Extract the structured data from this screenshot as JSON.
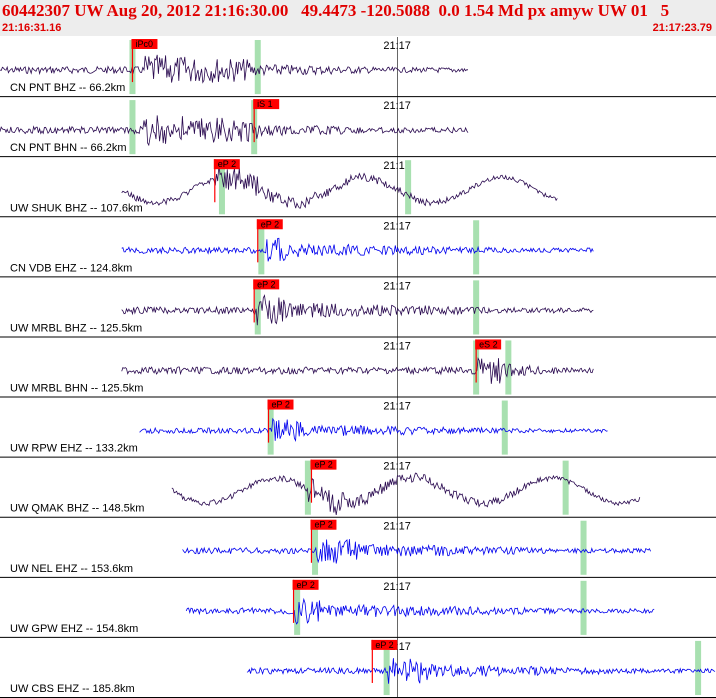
{
  "header": {
    "title": "60442307 UW Aug 20, 2012 21:16:30.00   49.4473 -120.5088  0.0 1.54 Md px amyw UW 01   5",
    "start_time": "21:16:31.16",
    "end_time": "21:17:23.79"
  },
  "colors": {
    "short_period": "#0000ee",
    "broadband": "#2a0a50",
    "pick_flag": "#ff0000",
    "pick_bar": "#a8e0b0",
    "header_text": "#e00000"
  },
  "chart_data": {
    "type": "line",
    "title": "",
    "time_axis": {
      "start": "21:16:31.16",
      "end": "21:17:23.79",
      "minute_tick_label": "21:17"
    },
    "series": [
      {
        "name": "CN PNT BHZ -- 66.2km",
        "color": "broadband",
        "start": 0,
        "end": 0.655,
        "amp": 16,
        "onset": 0.2,
        "pick": {
          "label": "iPc0",
          "pos": 0.185
        },
        "pick_bars": [
          0.185,
          0.36
        ],
        "coda": 0.35,
        "long_period": false
      },
      {
        "name": "CN PNT BHN -- 66.2km",
        "color": "broadband",
        "start": 0,
        "end": 0.655,
        "amp": 16,
        "onset": 0.2,
        "pick": {
          "label": "iS 1",
          "pos": 0.355
        },
        "pick_bars": [
          0.185,
          0.355
        ],
        "coda": 0.36,
        "long_period": false
      },
      {
        "name": "UW SHUK BHZ -- 107.6km",
        "color": "broadband",
        "start": 0.17,
        "end": 0.78,
        "amp": 14,
        "onset": 0.3,
        "pick": {
          "label": "eP 2",
          "pos": 0.3
        },
        "pick_bars": [
          0.31,
          0.57
        ],
        "coda": 0.36,
        "long_period": true
      },
      {
        "name": "CN VDB EHZ -- 124.8km",
        "color": "short_period",
        "start": 0.17,
        "end": 0.83,
        "amp": 14,
        "onset": 0.37,
        "pick": {
          "label": "eP 2",
          "pos": 0.36
        },
        "pick_bars": [
          0.365,
          0.665
        ],
        "coda": 0.4,
        "long_period": false
      },
      {
        "name": "UW MRBL BHZ -- 125.5km",
        "color": "broadband",
        "start": 0.17,
        "end": 0.83,
        "amp": 16,
        "onset": 0.355,
        "pick": {
          "label": "eP 2",
          "pos": 0.355
        },
        "pick_bars": [
          0.36,
          0.665
        ],
        "coda": 0.4,
        "long_period": false
      },
      {
        "name": "UW MRBL BHN -- 125.5km",
        "color": "broadband",
        "start": 0.17,
        "end": 0.83,
        "amp": 16,
        "onset": 0.665,
        "pick": {
          "label": "eS 2",
          "pos": 0.665
        },
        "pick_bars": [
          0.665,
          0.71
        ],
        "coda": 0.7,
        "long_period": false
      },
      {
        "name": "UW RPW EHZ -- 133.2km",
        "color": "short_period",
        "start": 0.195,
        "end": 0.85,
        "amp": 12,
        "onset": 0.38,
        "pick": {
          "label": "eP 2",
          "pos": 0.375
        },
        "pick_bars": [
          0.378,
          0.705
        ],
        "coda": 0.42,
        "long_period": false
      },
      {
        "name": "UW QMAK BHZ -- 148.5km",
        "color": "broadband",
        "start": 0.24,
        "end": 0.895,
        "amp": 14,
        "onset": 0.43,
        "pick": {
          "label": "eP 2",
          "pos": 0.435
        },
        "pick_bars": [
          0.43,
          0.79
        ],
        "coda": 0.48,
        "long_period": true
      },
      {
        "name": "UW NEL EHZ -- 153.6km",
        "color": "short_period",
        "start": 0.255,
        "end": 0.91,
        "amp": 14,
        "onset": 0.44,
        "pick": {
          "label": "eP 2",
          "pos": 0.435
        },
        "pick_bars": [
          0.44,
          0.815
        ],
        "coda": 0.5,
        "long_period": false
      },
      {
        "name": "UW GPW EHZ -- 154.8km",
        "color": "short_period",
        "start": 0.26,
        "end": 0.915,
        "amp": 14,
        "onset": 0.41,
        "pick": {
          "label": "eP 2",
          "pos": 0.41
        },
        "pick_bars": [
          0.415,
          0.815
        ],
        "coda": 0.45,
        "long_period": false
      },
      {
        "name": "UW CBS EHZ -- 185.8km",
        "color": "short_period",
        "start": 0.345,
        "end": 1.0,
        "amp": 14,
        "onset": 0.54,
        "pick": {
          "label": "eP 2",
          "pos": 0.52
        },
        "pick_bars": [
          0.54,
          0.975
        ],
        "coda": 0.6,
        "long_period": false
      }
    ]
  }
}
